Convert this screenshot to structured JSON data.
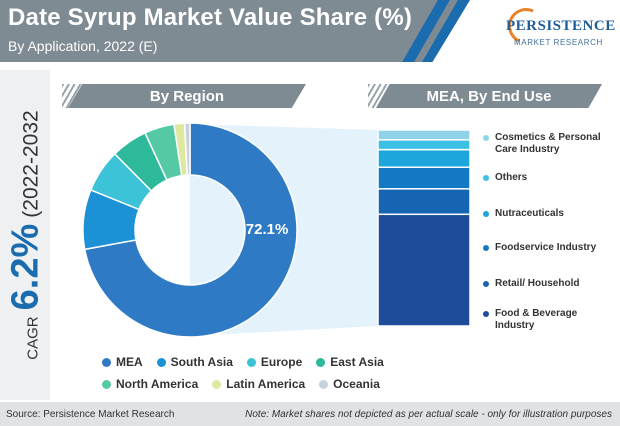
{
  "header": {
    "title": "Date Syrup Market Value Share (%)",
    "subtitle": "By Application, 2022 (E)"
  },
  "logo": {
    "name": "PERSISTENCE",
    "tagline": "MARKET RESEARCH"
  },
  "cagr": {
    "label": "CAGR",
    "value": "6.2%",
    "period": "(2022-2032"
  },
  "sections": {
    "left": "By Region",
    "right": "MEA, By End Use"
  },
  "colors": {
    "MEA": "#2f7ac4",
    "South Asia": "#1c91d6",
    "Europe": "#3cc3d8",
    "East Asia": "#2eb99a",
    "North America": "#54c9a4",
    "Latin America": "#dfe8a0",
    "Oceania": "#c7d1de",
    "Cosmetics & Personal Care Industry": "#8fd3ea",
    "Others": "#3cc1e4",
    "Nutraceuticals": "#1ca6dc",
    "Foodservice Industry": "#1479c4",
    "Retail/ Household": "#1565b3",
    "Food & Beverage Industry": "#1e4c9a"
  },
  "chart_data": [
    {
      "type": "pie",
      "title": "By Region",
      "categories": [
        "MEA",
        "South Asia",
        "Europe",
        "East Asia",
        "North America",
        "Latin America",
        "Oceania"
      ],
      "values": [
        72.1,
        9.0,
        6.5,
        5.5,
        4.5,
        1.6,
        0.8
      ],
      "labels": [
        "72.1%",
        "",
        "",
        "",
        "",
        "",
        ""
      ],
      "legend": [
        [
          "MEA",
          "South Asia",
          "Europe",
          "East Asia"
        ],
        [
          "North America",
          "Latin America",
          "Oceania"
        ]
      ]
    },
    {
      "type": "bar",
      "title": "MEA, By End Use",
      "stacked": true,
      "categories": [
        "Food & Beverage Industry",
        "Retail/ Household",
        "Foodservice Industry",
        "Nutraceuticals",
        "Others",
        "Cosmetics & Personal Care Industry"
      ],
      "values": [
        57,
        13,
        11,
        9,
        5,
        5
      ]
    }
  ],
  "enduse_legend": [
    "Cosmetics & Personal Care Industry",
    "Others",
    "Nutraceuticals",
    "Foodservice Industry",
    "Retail/ Household",
    "Food & Beverage Industry"
  ],
  "footer": {
    "source": "Source: Persistence Market Research",
    "note": "Note: Market shares not depicted as per actual scale - only for illustration purposes"
  }
}
